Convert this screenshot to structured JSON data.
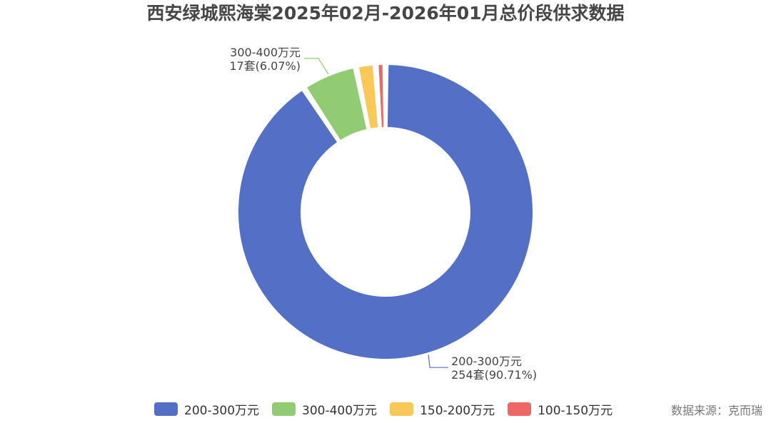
{
  "title": "西安绿城熙海棠2025年02月-2026年01月总价段供求数据",
  "source": "数据来源：克而瑞",
  "chart_data": {
    "type": "pie",
    "donut": true,
    "unit": "套",
    "slices": [
      {
        "name": "200-300万元",
        "value": 254,
        "percent": "90.71%",
        "label_line2": "254套(90.71%)",
        "color": "#5470c6"
      },
      {
        "name": "300-400万元",
        "value": 17,
        "percent": "6.07%",
        "label_line2": "17套(6.07%)",
        "color": "#91cc75"
      },
      {
        "name": "150-200万元",
        "value": 6,
        "percent": "2.14%",
        "color": "#fac858"
      },
      {
        "name": "100-150万元",
        "value": 3,
        "percent": "1.07%",
        "color": "#ee6666"
      }
    ],
    "legend_position": "bottom"
  }
}
